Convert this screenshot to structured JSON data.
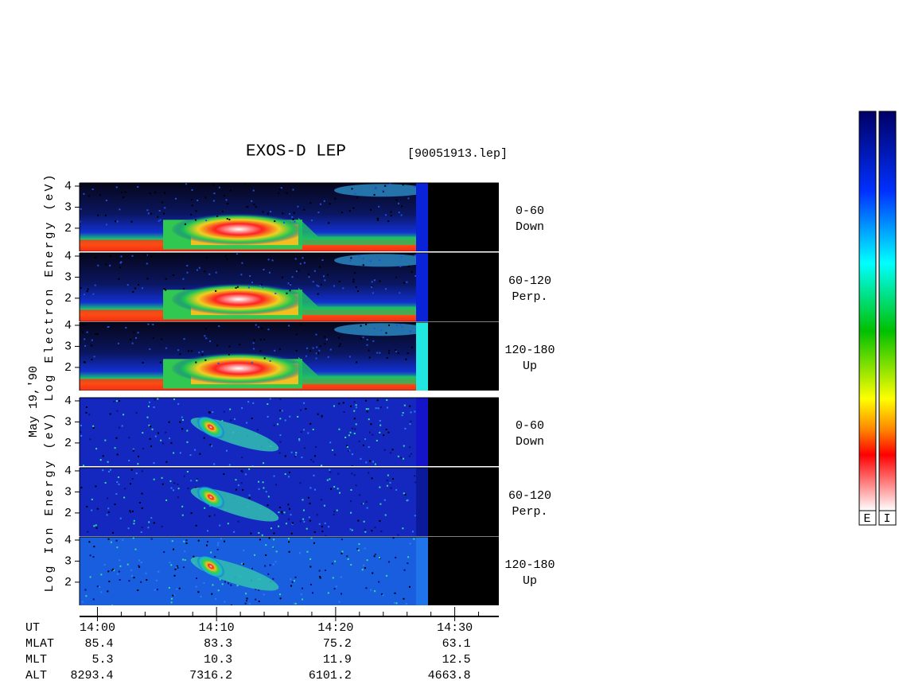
{
  "chart_data": {
    "type": "spectrogram",
    "title": "EXOS-D LEP",
    "file": "[90051913.lep]",
    "date": "May 19,'90",
    "groups": [
      {
        "label": "Log Electron Energy (eV)",
        "panels": [
          {
            "angle": "0-60",
            "direction": "Down",
            "strip_color": "#0a22d8"
          },
          {
            "angle": "60-120",
            "direction": "Perp.",
            "strip_color": "#0a22d8"
          },
          {
            "angle": "120-180",
            "direction": "Up",
            "strip_color": "#22e6e0"
          }
        ]
      },
      {
        "label": "Log Ion Energy (eV)",
        "panels": [
          {
            "angle": "0-60",
            "direction": "Down",
            "strip_color": "#1414c8"
          },
          {
            "angle": "60-120",
            "direction": "Perp.",
            "strip_color": "#0a1a9a"
          },
          {
            "angle": "120-180",
            "direction": "Up",
            "strip_color": "#1e74e8"
          }
        ]
      }
    ],
    "ylim": [
      0.9,
      4.15
    ],
    "yticks": [
      2,
      3,
      4
    ],
    "xlim": [
      -1.5,
      33.7
    ],
    "x_label": "UT",
    "xticks": [
      {
        "value": 0,
        "label": "14:00"
      },
      {
        "value": 10,
        "label": "14:10"
      },
      {
        "value": 20,
        "label": "14:20"
      },
      {
        "value": 30,
        "label": "14:30"
      }
    ],
    "minor_xticks": [
      2,
      4,
      6,
      8,
      12,
      14,
      16,
      18,
      22,
      24,
      26,
      28,
      32
    ],
    "orbit": [
      {
        "name": "MLAT",
        "values": [
          85.4,
          83.3,
          75.2,
          63.1
        ]
      },
      {
        "name": "MLT",
        "values": [
          5.3,
          10.3,
          11.9,
          12.5
        ]
      },
      {
        "name": "ALT",
        "values": [
          8293.4,
          7316.2,
          6101.2,
          4663.8
        ]
      }
    ],
    "colorbar_labels": [
      "E",
      "I"
    ]
  }
}
